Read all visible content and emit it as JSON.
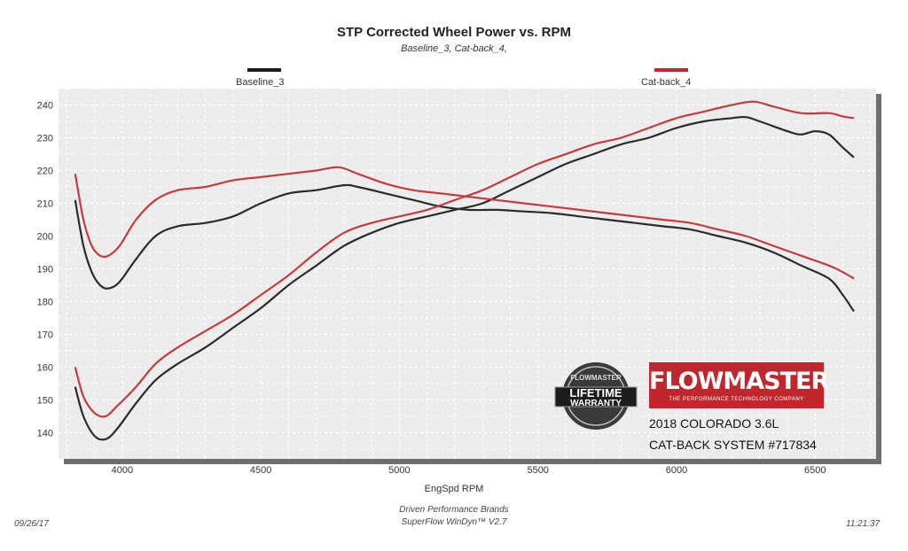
{
  "chart_data": {
    "type": "line",
    "title": "STP Corrected Wheel Power vs. RPM",
    "subtitle": "Baseline_3, Cat-back_4,",
    "xlabel": "EngSpd  RPM",
    "ylabel": "",
    "xlim": [
      3770,
      6720
    ],
    "ylim": [
      132,
      245
    ],
    "x_ticks": [
      4000,
      4500,
      5000,
      5500,
      6000,
      6500
    ],
    "y_ticks": [
      140,
      150,
      160,
      170,
      180,
      190,
      200,
      210,
      220,
      230,
      240
    ],
    "grid": true,
    "legend_position": "top",
    "series": [
      {
        "name": "Baseline_3",
        "color": "#2b2b2b",
        "curves": [
          [
            [
              3830,
              154
            ],
            [
              3860,
              145
            ],
            [
              3900,
              139
            ],
            [
              3940,
              138
            ],
            [
              3980,
              141
            ],
            [
              4050,
              149
            ],
            [
              4120,
              156
            ],
            [
              4200,
              161
            ],
            [
              4300,
              166
            ],
            [
              4400,
              172
            ],
            [
              4500,
              178
            ],
            [
              4600,
              185
            ],
            [
              4700,
              191
            ],
            [
              4800,
              197
            ],
            [
              4900,
              201
            ],
            [
              5000,
              204
            ],
            [
              5100,
              206
            ],
            [
              5200,
              208
            ],
            [
              5300,
              210
            ],
            [
              5400,
              214
            ],
            [
              5500,
              218
            ],
            [
              5600,
              222
            ],
            [
              5700,
              225
            ],
            [
              5800,
              228
            ],
            [
              5900,
              230
            ],
            [
              6000,
              233
            ],
            [
              6100,
              235
            ],
            [
              6200,
              236
            ],
            [
              6250,
              236.3
            ],
            [
              6300,
              235
            ],
            [
              6400,
              232
            ],
            [
              6450,
              231
            ],
            [
              6500,
              232
            ],
            [
              6550,
              231
            ],
            [
              6600,
              227
            ],
            [
              6640,
              224
            ]
          ],
          [
            [
              3830,
              211
            ],
            [
              3860,
              197
            ],
            [
              3890,
              189
            ],
            [
              3920,
              185
            ],
            [
              3950,
              184
            ],
            [
              3990,
              186
            ],
            [
              4050,
              193
            ],
            [
              4120,
              200
            ],
            [
              4200,
              203
            ],
            [
              4300,
              204
            ],
            [
              4400,
              206
            ],
            [
              4500,
              210
            ],
            [
              4600,
              213
            ],
            [
              4700,
              214
            ],
            [
              4800,
              215.5
            ],
            [
              4850,
              215
            ],
            [
              4950,
              213
            ],
            [
              5050,
              211
            ],
            [
              5150,
              209
            ],
            [
              5250,
              208
            ],
            [
              5350,
              208
            ],
            [
              5450,
              207.5
            ],
            [
              5550,
              207
            ],
            [
              5650,
              206
            ],
            [
              5750,
              205
            ],
            [
              5850,
              204
            ],
            [
              5950,
              203
            ],
            [
              6050,
              202
            ],
            [
              6150,
              200
            ],
            [
              6250,
              198
            ],
            [
              6350,
              195
            ],
            [
              6450,
              191
            ],
            [
              6550,
              187
            ],
            [
              6600,
              182
            ],
            [
              6640,
              177
            ]
          ]
        ]
      },
      {
        "name": "Cat-back_4",
        "color": "#c63b3b",
        "curves": [
          [
            [
              3830,
              160
            ],
            [
              3860,
              151
            ],
            [
              3900,
              146
            ],
            [
              3940,
              145
            ],
            [
              3980,
              148
            ],
            [
              4050,
              154
            ],
            [
              4120,
              161
            ],
            [
              4200,
              166
            ],
            [
              4300,
              171
            ],
            [
              4400,
              176
            ],
            [
              4500,
              182
            ],
            [
              4600,
              188
            ],
            [
              4700,
              195
            ],
            [
              4800,
              201
            ],
            [
              4900,
              204
            ],
            [
              5000,
              206
            ],
            [
              5100,
              208
            ],
            [
              5200,
              211
            ],
            [
              5300,
              214
            ],
            [
              5400,
              218
            ],
            [
              5500,
              222
            ],
            [
              5600,
              225
            ],
            [
              5700,
              228
            ],
            [
              5800,
              230
            ],
            [
              5900,
              233
            ],
            [
              6000,
              236
            ],
            [
              6100,
              238
            ],
            [
              6200,
              240
            ],
            [
              6280,
              241
            ],
            [
              6350,
              239.5
            ],
            [
              6450,
              237.5
            ],
            [
              6550,
              237.5
            ],
            [
              6600,
              236.5
            ],
            [
              6640,
              236
            ]
          ],
          [
            [
              3830,
              219
            ],
            [
              3860,
              205
            ],
            [
              3890,
              197
            ],
            [
              3920,
              194
            ],
            [
              3950,
              194
            ],
            [
              3990,
              197
            ],
            [
              4050,
              205
            ],
            [
              4120,
              211
            ],
            [
              4200,
              214
            ],
            [
              4300,
              215
            ],
            [
              4400,
              217
            ],
            [
              4500,
              218
            ],
            [
              4600,
              219
            ],
            [
              4700,
              220
            ],
            [
              4780,
              221
            ],
            [
              4850,
              219
            ],
            [
              4950,
              216
            ],
            [
              5050,
              214
            ],
            [
              5150,
              213
            ],
            [
              5250,
              212
            ],
            [
              5350,
              211
            ],
            [
              5450,
              210
            ],
            [
              5550,
              209
            ],
            [
              5650,
              208
            ],
            [
              5750,
              207
            ],
            [
              5850,
              206
            ],
            [
              5950,
              205
            ],
            [
              6050,
              204
            ],
            [
              6150,
              202
            ],
            [
              6250,
              200
            ],
            [
              6350,
              197
            ],
            [
              6450,
              194
            ],
            [
              6550,
              191
            ],
            [
              6600,
              189
            ],
            [
              6640,
              187
            ]
          ]
        ]
      }
    ]
  },
  "footer": {
    "date": "09/26/17",
    "time": "11:21:37",
    "line1": "Driven Performance Brands",
    "line2": "SuperFlow WinDyn™  V2.7"
  },
  "badge": {
    "brand": "FLOWMASTER",
    "tagline": "THE PERFORMANCE TECHNOLOGY COMPANY",
    "seal_top": "FLOWMASTER",
    "seal_main1": "LIFETIME",
    "seal_main2": "WARRANTY"
  },
  "vehicle": {
    "line1": "2018 COLORADO 3.6L",
    "line2": "CAT-BACK SYSTEM #717834"
  },
  "colors": {
    "plot_bg": "#ececec",
    "grid": "#ffffff",
    "shadow": "#6e6e6e",
    "brand_red": "#c0272d"
  }
}
